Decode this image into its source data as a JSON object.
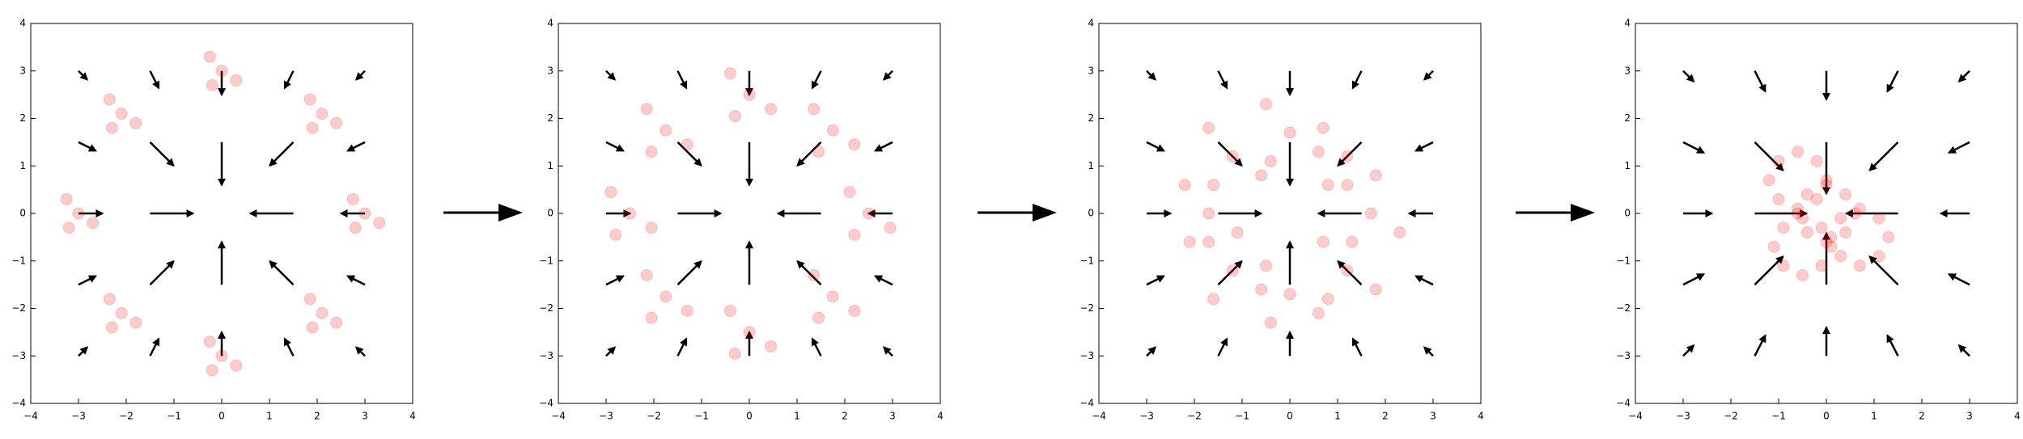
{
  "chart_data": [
    {
      "type": "scatter",
      "x": [
        3,
        3.3,
        2.75,
        2.8,
        2.1,
        2.4,
        1.85,
        1.9,
        0,
        0.3,
        -0.25,
        -0.2,
        -2.1,
        -1.8,
        -2.35,
        -2.3,
        -3,
        -2.7,
        -3.25,
        -3.2,
        -2.1,
        -1.8,
        -2.35,
        -2.3,
        0,
        0.3,
        -0.25,
        -0.2,
        2.1,
        2.4,
        1.85,
        1.9
      ],
      "y": [
        0,
        -0.2,
        0.3,
        -0.3,
        2.1,
        1.9,
        2.4,
        1.8,
        3,
        2.8,
        3.3,
        2.7,
        2.1,
        1.9,
        2.4,
        1.8,
        0,
        -0.2,
        0.3,
        -0.3,
        -2.1,
        -2.3,
        -1.8,
        -2.4,
        -3,
        -3.2,
        -2.7,
        -3.3,
        -2.1,
        -2.3,
        -1.8,
        -2.4
      ],
      "color": "#ff0000",
      "alpha": 0.2,
      "quiver": {
        "color": "#000000",
        "x": [
          -3,
          -1.5,
          0,
          1.5,
          3,
          -3,
          -1.5,
          0,
          1.5,
          3,
          -3,
          -1.5,
          0,
          1.5,
          3,
          -3,
          -1.5,
          0,
          1.5,
          3,
          -3,
          -1.5,
          0,
          1.5,
          3
        ],
        "y": [
          3,
          3,
          3,
          3,
          3,
          1.5,
          1.5,
          1.5,
          1.5,
          1.5,
          0,
          0,
          0,
          0,
          0,
          -1.5,
          -1.5,
          -1.5,
          -1.5,
          -1.5,
          -3,
          -3,
          -3,
          -3,
          -3
        ],
        "u": [
          0.18,
          0.18,
          0,
          -0.18,
          -0.18,
          0.36,
          0.49,
          0,
          -0.49,
          -0.36,
          0.5,
          0.9,
          0,
          -0.9,
          -0.5,
          0.36,
          0.49,
          0,
          -0.49,
          -0.36,
          0.18,
          0.18,
          0,
          -0.18,
          -0.18
        ],
        "v": [
          -0.18,
          -0.36,
          -0.5,
          -0.36,
          -0.18,
          -0.18,
          -0.49,
          -0.9,
          -0.49,
          -0.18,
          0,
          0,
          0,
          0,
          0,
          0.18,
          0.49,
          0.9,
          0.49,
          0.18,
          0.18,
          0.36,
          0.5,
          0.36,
          0.18
        ]
      },
      "xlim": [
        -4,
        4
      ],
      "ylim": [
        -4,
        4
      ],
      "xticks": [
        {
          "value": -4,
          "label": "−4"
        },
        {
          "value": -3,
          "label": "−3"
        },
        {
          "value": -2,
          "label": "−2"
        },
        {
          "value": -1,
          "label": "−1"
        },
        0,
        1,
        2,
        3,
        4
      ],
      "yticks": [
        {
          "value": -4,
          "label": "−4"
        },
        {
          "value": -3,
          "label": "−3"
        },
        {
          "value": -2,
          "label": "−2"
        },
        {
          "value": -1,
          "label": "−1"
        },
        0,
        1,
        2,
        3,
        4
      ]
    },
    {
      "type": "scatter",
      "x": [
        2.5,
        2.95,
        2.1,
        2.2,
        1.75,
        2.2,
        1.35,
        1.45,
        0,
        0.45,
        -0.4,
        -0.3,
        -1.75,
        -1.3,
        -2.15,
        -2.05,
        -2.5,
        -2.05,
        -2.9,
        -2.8,
        -1.75,
        -1.3,
        -2.15,
        -2.05,
        0,
        0.45,
        -0.4,
        -0.3,
        1.75,
        2.2,
        1.35,
        1.45
      ],
      "y": [
        0,
        -0.3,
        0.45,
        -0.45,
        1.75,
        1.45,
        2.2,
        1.3,
        2.5,
        2.2,
        2.95,
        2.05,
        1.75,
        1.45,
        2.2,
        1.3,
        0,
        -0.3,
        0.45,
        -0.45,
        -1.75,
        -2.05,
        -1.3,
        -2.2,
        -2.5,
        -2.8,
        -2.05,
        -2.95,
        -1.75,
        -2.05,
        -1.3,
        -2.2
      ],
      "color": "#ff0000",
      "alpha": 0.2,
      "quiver": {
        "color": "#000000",
        "x": [
          -3,
          -1.5,
          0,
          1.5,
          3,
          -3,
          -1.5,
          0,
          1.5,
          3,
          -3,
          -1.5,
          0,
          1.5,
          3,
          -3,
          -1.5,
          0,
          1.5,
          3,
          -3,
          -1.5,
          0,
          1.5,
          3
        ],
        "y": [
          3,
          3,
          3,
          3,
          3,
          1.5,
          1.5,
          1.5,
          1.5,
          1.5,
          0,
          0,
          0,
          0,
          0,
          -1.5,
          -1.5,
          -1.5,
          -1.5,
          -1.5,
          -3,
          -3,
          -3,
          -3,
          -3
        ],
        "u": [
          0.18,
          0.18,
          0,
          -0.18,
          -0.18,
          0.36,
          0.49,
          0,
          -0.49,
          -0.36,
          0.5,
          0.9,
          0,
          -0.9,
          -0.5,
          0.36,
          0.49,
          0,
          -0.49,
          -0.36,
          0.18,
          0.18,
          0,
          -0.18,
          -0.18
        ],
        "v": [
          -0.18,
          -0.36,
          -0.5,
          -0.36,
          -0.18,
          -0.18,
          -0.49,
          -0.9,
          -0.49,
          -0.18,
          0,
          0,
          0,
          0,
          0,
          0.18,
          0.49,
          0.9,
          0.49,
          0.18,
          0.18,
          0.36,
          0.5,
          0.36,
          0.18
        ]
      },
      "xlim": [
        -4,
        4
      ],
      "ylim": [
        -4,
        4
      ],
      "xticks": [
        {
          "value": -4,
          "label": "−4"
        },
        {
          "value": -3,
          "label": "−3"
        },
        {
          "value": -2,
          "label": "−2"
        },
        {
          "value": -1,
          "label": "−1"
        },
        0,
        1,
        2,
        3,
        4
      ],
      "yticks": [
        {
          "value": -4,
          "label": "−4"
        },
        {
          "value": -3,
          "label": "−3"
        },
        {
          "value": -2,
          "label": "−2"
        },
        {
          "value": -1,
          "label": "−1"
        },
        0,
        1,
        2,
        3,
        4
      ]
    },
    {
      "type": "scatter",
      "x": [
        1.7,
        2.3,
        1.2,
        1.3,
        1.2,
        1.8,
        0.7,
        0.8,
        0,
        0.6,
        -0.5,
        -0.4,
        -1.2,
        -0.6,
        -1.7,
        -1.6,
        -1.7,
        -1.1,
        -2.2,
        -2.1,
        -1.2,
        -0.6,
        -1.7,
        -1.6,
        0,
        0.6,
        -0.5,
        -0.4,
        1.2,
        1.8,
        0.7,
        0.8
      ],
      "y": [
        0,
        -0.4,
        0.6,
        -0.6,
        1.2,
        0.8,
        1.8,
        0.6,
        1.7,
        1.3,
        2.3,
        1.1,
        1.2,
        0.8,
        1.8,
        0.6,
        0,
        -0.4,
        0.6,
        -0.6,
        -1.2,
        -1.6,
        -0.6,
        -1.8,
        -1.7,
        -2.1,
        -1.1,
        -2.3,
        -1.2,
        -1.6,
        -0.6,
        -1.8
      ],
      "color": "#ff0000",
      "alpha": 0.2,
      "quiver": {
        "color": "#000000",
        "x": [
          -3,
          -1.5,
          0,
          1.5,
          3,
          -3,
          -1.5,
          0,
          1.5,
          3,
          -3,
          -1.5,
          0,
          1.5,
          3,
          -3,
          -1.5,
          0,
          1.5,
          3,
          -3,
          -1.5,
          0,
          1.5,
          3
        ],
        "y": [
          3,
          3,
          3,
          3,
          3,
          1.5,
          1.5,
          1.5,
          1.5,
          1.5,
          0,
          0,
          0,
          0,
          0,
          -1.5,
          -1.5,
          -1.5,
          -1.5,
          -1.5,
          -3,
          -3,
          -3,
          -3,
          -3
        ],
        "u": [
          0.18,
          0.18,
          0,
          -0.18,
          -0.18,
          0.36,
          0.49,
          0,
          -0.49,
          -0.36,
          0.5,
          0.9,
          0,
          -0.9,
          -0.5,
          0.36,
          0.49,
          0,
          -0.49,
          -0.36,
          0.18,
          0.18,
          0,
          -0.18,
          -0.18
        ],
        "v": [
          -0.18,
          -0.36,
          -0.5,
          -0.36,
          -0.18,
          -0.18,
          -0.49,
          -0.9,
          -0.49,
          -0.18,
          0,
          0,
          0,
          0,
          0,
          0.18,
          0.49,
          0.9,
          0.49,
          0.18,
          0.18,
          0.36,
          0.5,
          0.36,
          0.18
        ]
      },
      "xlim": [
        -4,
        4
      ],
      "ylim": [
        -4,
        4
      ],
      "xticks": [
        {
          "value": -4,
          "label": "−4"
        },
        {
          "value": -3,
          "label": "−3"
        },
        {
          "value": -2,
          "label": "−2"
        },
        {
          "value": -1,
          "label": "−1"
        },
        0,
        1,
        2,
        3,
        4
      ],
      "yticks": [
        {
          "value": -4,
          "label": "−4"
        },
        {
          "value": -3,
          "label": "−3"
        },
        {
          "value": -2,
          "label": "−2"
        },
        {
          "value": -1,
          "label": "−1"
        },
        0,
        1,
        2,
        3,
        4
      ]
    },
    {
      "type": "scatter",
      "x": [
        0.6,
        1.3,
        0,
        0.1,
        0.4,
        1.1,
        -0.2,
        -0.1,
        0,
        0.7,
        -0.6,
        -0.5,
        -0.4,
        0.3,
        -1,
        -0.9,
        -0.6,
        0.1,
        -1.2,
        -1.1,
        -0.4,
        0.3,
        -1,
        -0.9,
        0,
        0.7,
        -0.6,
        -0.5,
        0.4,
        1.1,
        -0.2,
        -0.1
      ],
      "y": [
        0,
        -0.5,
        0.7,
        -0.7,
        0.4,
        -0.1,
        1.1,
        -0.3,
        0.6,
        0.1,
        1.3,
        -0.1,
        0.4,
        -0.1,
        1.1,
        -0.3,
        0,
        -0.5,
        0.7,
        -0.7,
        -0.4,
        -0.9,
        0.3,
        -1.1,
        -0.6,
        -1.1,
        0.1,
        -1.3,
        -0.4,
        -0.9,
        0.3,
        -1.1
      ],
      "color": "#ff0000",
      "alpha": 0.2,
      "quiver": {
        "color": "#000000",
        "x": [
          -3,
          -1.5,
          0,
          1.5,
          3,
          -3,
          -1.5,
          0,
          1.5,
          3,
          -3,
          -1.5,
          0,
          1.5,
          3,
          -3,
          -1.5,
          0,
          1.5,
          3,
          -3,
          -1.5,
          0,
          1.5,
          3
        ],
        "y": [
          3,
          3,
          3,
          3,
          3,
          1.5,
          1.5,
          1.5,
          1.5,
          1.5,
          0,
          0,
          0,
          0,
          0,
          -1.5,
          -1.5,
          -1.5,
          -1.5,
          -1.5,
          -3,
          -3,
          -3,
          -3,
          -3
        ],
        "u": [
          0.22,
          0.22,
          0,
          -0.22,
          -0.22,
          0.43,
          0.59,
          0,
          -0.59,
          -0.43,
          0.6,
          1.08,
          0,
          -1.08,
          -0.6,
          0.43,
          0.59,
          0,
          -0.59,
          -0.43,
          0.22,
          0.22,
          0,
          -0.22,
          -0.22
        ],
        "v": [
          -0.22,
          -0.43,
          -0.6,
          -0.43,
          -0.22,
          -0.22,
          -0.59,
          -1.08,
          -0.59,
          -0.22,
          0,
          0,
          0,
          0,
          0,
          0.22,
          0.59,
          1.08,
          0.59,
          0.22,
          0.22,
          0.43,
          0.6,
          0.43,
          0.22
        ]
      },
      "xlim": [
        -4,
        4
      ],
      "ylim": [
        -4,
        4
      ],
      "xticks": [
        {
          "value": -4,
          "label": "−4"
        },
        {
          "value": -3,
          "label": "−3"
        },
        {
          "value": -2,
          "label": "−2"
        },
        {
          "value": -1,
          "label": "−1"
        },
        0,
        1,
        2,
        3,
        4
      ],
      "yticks": [
        {
          "value": -4,
          "label": "−4"
        },
        {
          "value": -3,
          "label": "−3"
        },
        {
          "value": -2,
          "label": "−2"
        },
        {
          "value": -1,
          "label": "−1"
        },
        0,
        1,
        2,
        3,
        4
      ]
    }
  ]
}
